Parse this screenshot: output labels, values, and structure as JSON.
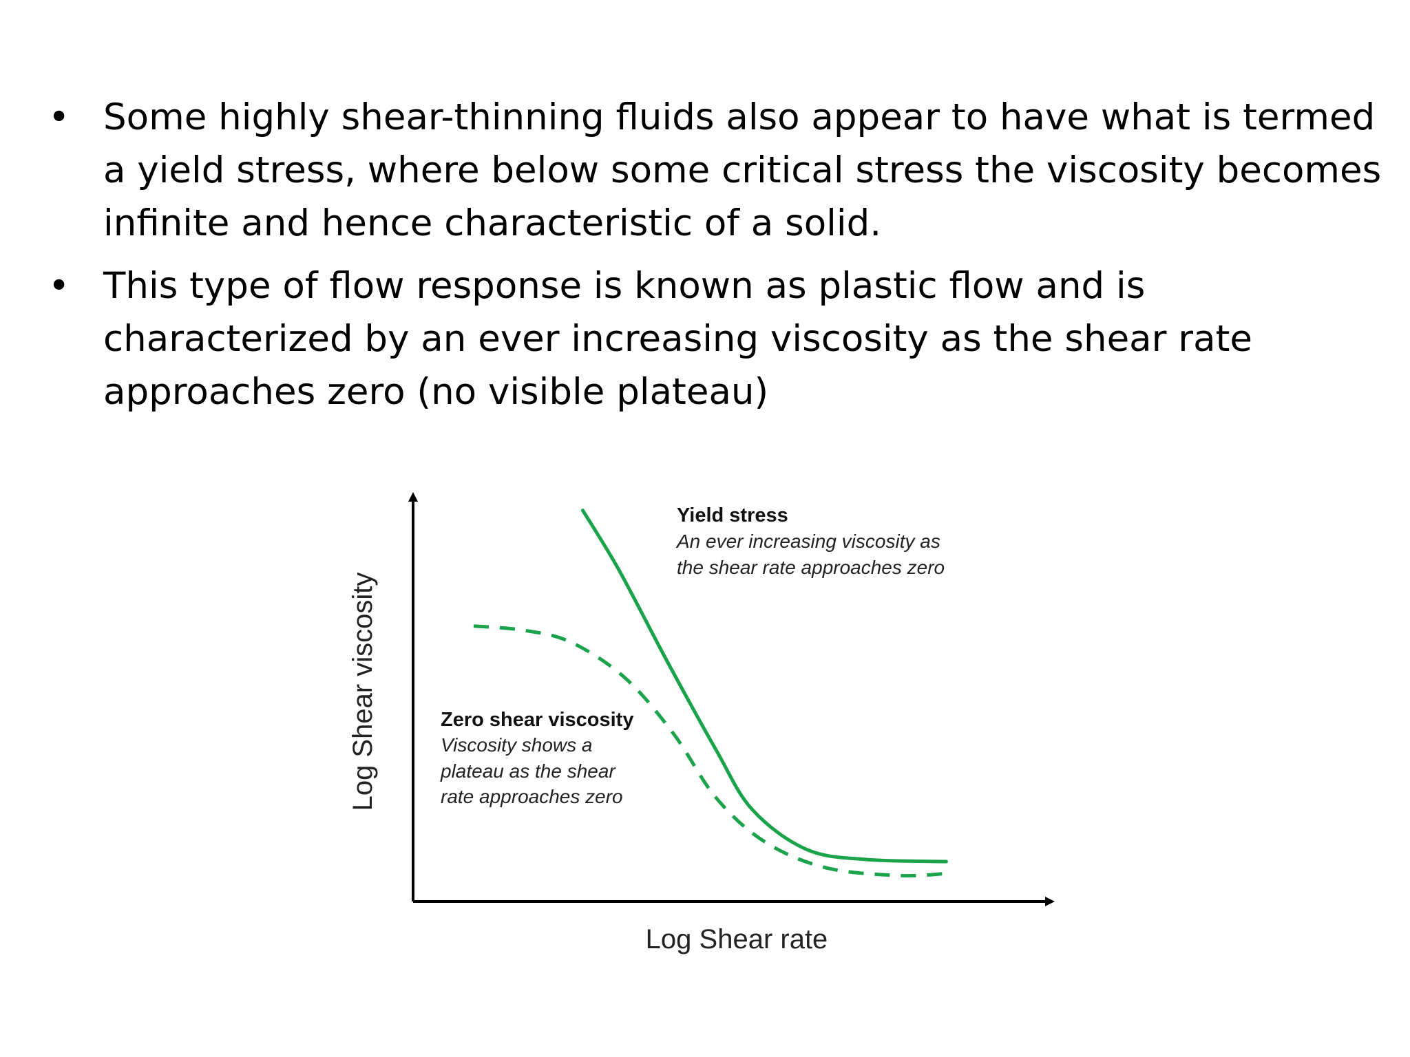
{
  "bullets": [
    {
      "symbol": "•",
      "lines": [
        "Some highly shear-thinning fluids also appear to have what is termed",
        "a yield stress, where below some critical stress the viscosity becomes",
        "infinite and hence characteristic of a solid."
      ]
    },
    {
      "symbol": "•",
      "lines": [
        "This type of flow response is known as plastic flow and is",
        "characterized by an ever increasing viscosity as the shear rate",
        "approaches zero (no visible plateau)"
      ]
    }
  ],
  "chart_data": {
    "type": "line",
    "xlabel": "Log Shear rate",
    "ylabel": "Log Shear viscosity",
    "grid": false,
    "legend": "none",
    "colors": {
      "curve": "#1aa34a",
      "axis": "#000000"
    },
    "xlim": [
      0,
      10
    ],
    "ylim": [
      0,
      10
    ],
    "series": [
      {
        "style": "solid",
        "x": [
          2.8,
          3.4,
          4.2,
          5.0,
          5.6,
          6.5,
          7.5,
          8.8
        ],
        "y": [
          9.8,
          8.3,
          6.0,
          3.8,
          2.3,
          1.3,
          1.05,
          1.0
        ]
      },
      {
        "style": "dashed",
        "x": [
          1.0,
          1.8,
          2.6,
          3.5,
          4.3,
          5.0,
          5.8,
          6.8,
          8.0,
          8.8
        ],
        "y": [
          6.9,
          6.8,
          6.5,
          5.6,
          4.2,
          2.6,
          1.5,
          0.85,
          0.65,
          0.7
        ]
      }
    ],
    "annotations": [
      {
        "title": "Yield stress",
        "lines": [
          "An ever increasing viscosity as",
          "the shear rate approaches zero"
        ],
        "position": "top-right"
      },
      {
        "title": "Zero shear viscosity",
        "lines": [
          "Viscosity shows a",
          "plateau as the shear",
          "rate approaches zero"
        ],
        "position": "center-left"
      }
    ]
  }
}
